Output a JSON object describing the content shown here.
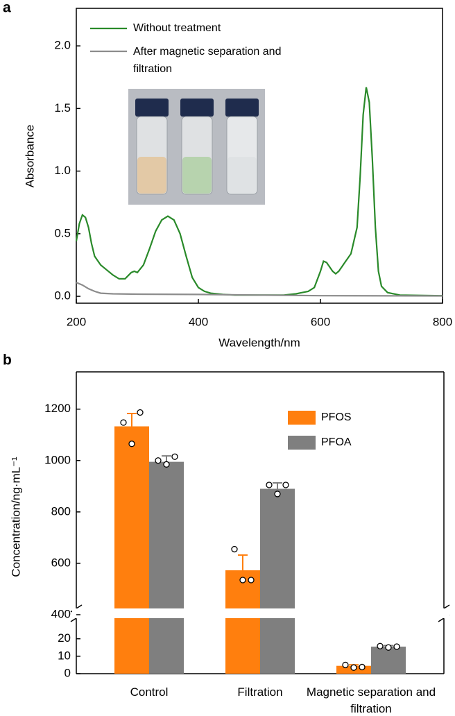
{
  "chart_data": [
    {
      "type": "line",
      "panel_label": "a",
      "x_label": "Wavelength/nm",
      "y_label": "Absorbance",
      "xlim": [
        200,
        800
      ],
      "xticks": [
        200,
        400,
        600,
        800
      ],
      "ylim": [
        -0.055,
        2.3
      ],
      "yticks": [
        {
          "value": 0,
          "label": "0.0"
        },
        0.5,
        {
          "value": 1,
          "label": "1.0"
        },
        1.5,
        {
          "value": 2,
          "label": "2.0"
        }
      ],
      "series": [
        {
          "name": "Without treatment",
          "color": "#2a8a2a",
          "x": [
            200,
            205,
            210,
            215,
            220,
            225,
            230,
            240,
            250,
            260,
            270,
            280,
            290,
            295,
            300,
            310,
            320,
            330,
            340,
            350,
            360,
            370,
            380,
            390,
            400,
            410,
            420,
            440,
            460,
            500,
            540,
            560,
            570,
            580,
            590,
            600,
            605,
            610,
            620,
            625,
            630,
            640,
            650,
            660,
            665,
            670,
            675,
            680,
            685,
            690,
            695,
            700,
            710,
            730,
            800
          ],
          "values": [
            0.44,
            0.58,
            0.65,
            0.63,
            0.55,
            0.42,
            0.32,
            0.25,
            0.21,
            0.17,
            0.14,
            0.14,
            0.19,
            0.2,
            0.19,
            0.25,
            0.38,
            0.52,
            0.61,
            0.64,
            0.61,
            0.5,
            0.32,
            0.15,
            0.07,
            0.04,
            0.025,
            0.015,
            0.01,
            0.01,
            0.01,
            0.02,
            0.03,
            0.04,
            0.07,
            0.2,
            0.28,
            0.27,
            0.2,
            0.18,
            0.2,
            0.27,
            0.34,
            0.55,
            0.95,
            1.45,
            1.67,
            1.55,
            1.1,
            0.55,
            0.2,
            0.08,
            0.03,
            0.01,
            0.005
          ]
        },
        {
          "name": "After magnetic separation and filtration",
          "color": "#8c8c8c",
          "x": [
            200,
            210,
            220,
            230,
            240,
            260,
            300,
            400,
            500,
            600,
            800
          ],
          "values": [
            0.11,
            0.09,
            0.06,
            0.04,
            0.025,
            0.02,
            0.017,
            0.015,
            0.01,
            0.005,
            0.003
          ]
        }
      ]
    },
    {
      "type": "bar",
      "panel_label": "b",
      "y_label": "Concentration/ng·mL⁻¹",
      "categories": [
        "Control",
        "Filtration",
        "Magnetic separation and filtration"
      ],
      "ylims": [
        [
          0,
          33
        ],
        [
          400,
          1345
        ]
      ],
      "yticks": [
        0,
        10,
        20,
        400,
        600,
        800,
        1000,
        1200
      ],
      "series": [
        {
          "name": "PFOS",
          "color": "#ff7f0e",
          "values": [
            1133,
            573,
            4.5
          ],
          "errors": [
            50,
            59,
            0.6
          ],
          "points": [
            [
              1148,
              1065,
              1187
            ],
            [
              655,
              535,
              535
            ],
            [
              5,
              3.5,
              3.8
            ]
          ]
        },
        {
          "name": "PFOA",
          "color": "#7f7f7f",
          "values": [
            995,
            890,
            15.5
          ],
          "errors": [
            23,
            23,
            0.6
          ],
          "points": [
            [
              1000,
              985,
              1015
            ],
            [
              905,
              870,
              905
            ],
            [
              15.8,
              15,
              15.5
            ]
          ]
        }
      ]
    }
  ]
}
